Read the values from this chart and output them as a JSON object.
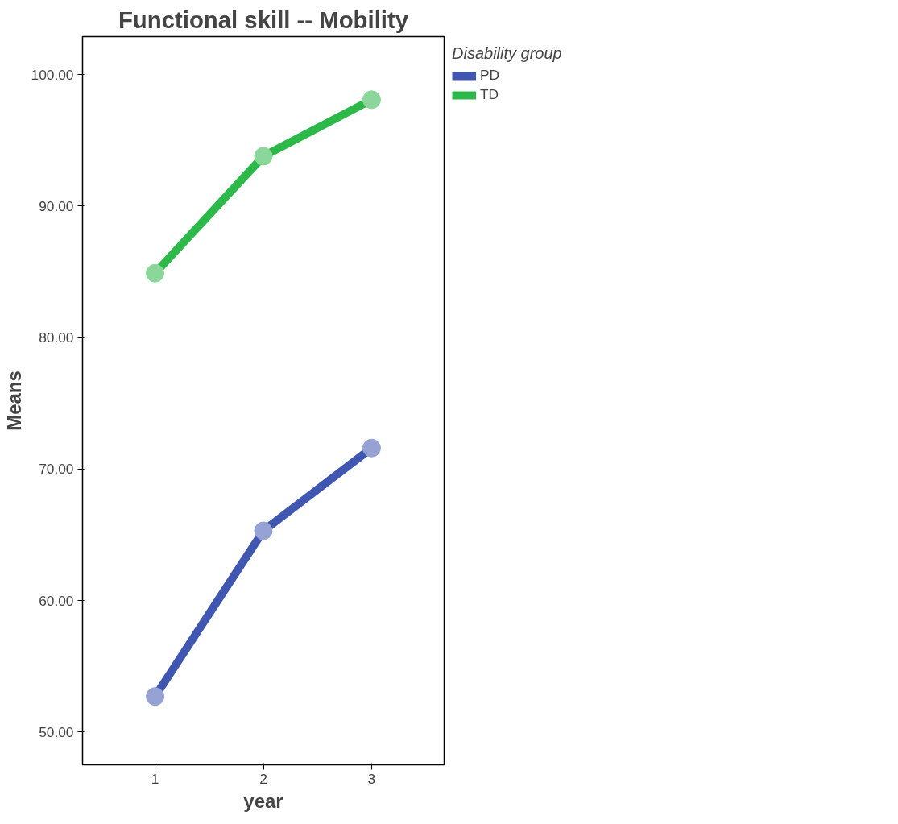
{
  "chart_data": {
    "type": "line",
    "title": "Functional skill -- Mobility",
    "xlabel": "year",
    "ylabel": "Means",
    "legend_title": "Disability group",
    "x": [
      1,
      2,
      3
    ],
    "series": [
      {
        "name": "PD",
        "color": "#3f57b0",
        "values": [
          52.7,
          65.3,
          71.6
        ]
      },
      {
        "name": "TD",
        "color": "#2db84a",
        "values": [
          84.9,
          93.8,
          98.1
        ]
      }
    ],
    "xlim": [
      0.33,
      3.67
    ],
    "xticks": [
      1,
      2,
      3
    ],
    "ylim": [
      47.5,
      102.9
    ],
    "yticks": [
      {
        "value": 50,
        "label": "50.00"
      },
      {
        "value": 60,
        "label": "60.00"
      },
      {
        "value": 70,
        "label": "70.00"
      },
      {
        "value": 80,
        "label": "80.00"
      },
      {
        "value": 90,
        "label": "90.00"
      },
      {
        "value": 100,
        "label": "100.00"
      }
    ],
    "grid": false,
    "legend": "top right",
    "marker": "circle",
    "line_style": "solid"
  }
}
